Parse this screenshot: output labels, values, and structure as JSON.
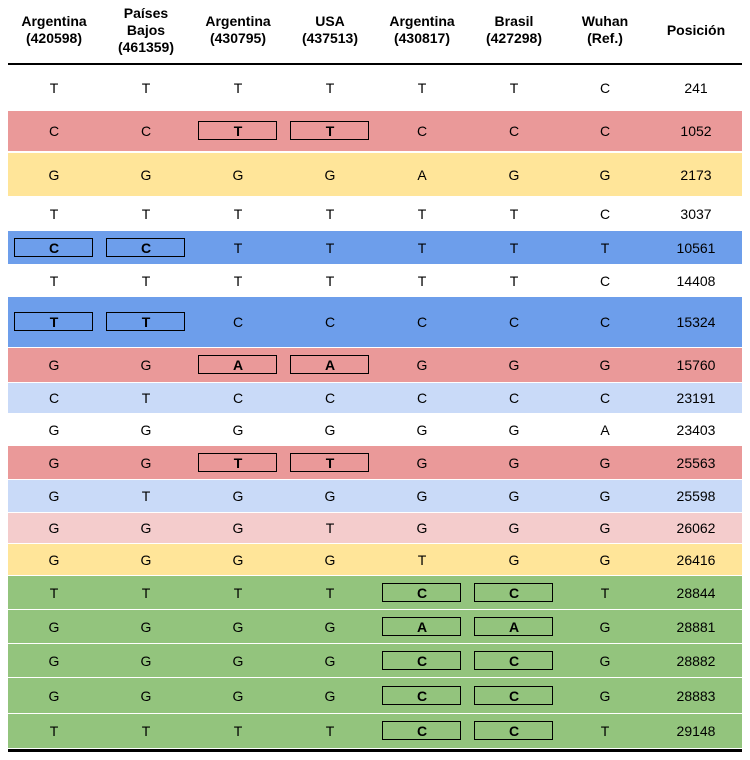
{
  "colors": {
    "red": "#ea9999",
    "yellow": "#ffe599",
    "blue": "#6d9eeb",
    "lightblue": "#c9daf8",
    "pink": "#f4cccc",
    "green": "#93c47d",
    "none": "#ffffff"
  },
  "headers": [
    "Argentina\n(420598)",
    "Países\nBajos\n(461359)",
    "Argentina\n(430795)",
    "USA\n(437513)",
    "Argentina\n(430817)",
    "Brasil\n(427298)",
    "Wuhan\n(Ref.)",
    "Posición"
  ],
  "rows": [
    {
      "bases": [
        "T",
        "T",
        "T",
        "T",
        "T",
        "T",
        "C"
      ],
      "position": "241",
      "color": "none",
      "boxed": []
    },
    {
      "bases": [
        "C",
        "C",
        "T",
        "T",
        "C",
        "C",
        "C"
      ],
      "position": "1052",
      "color": "red",
      "boxed": [
        2,
        3
      ]
    },
    {
      "bases": [
        "G",
        "G",
        "G",
        "G",
        "A",
        "G",
        "G"
      ],
      "position": "2173",
      "color": "yellow",
      "boxed": []
    },
    {
      "bases": [
        "T",
        "T",
        "T",
        "T",
        "T",
        "T",
        "C"
      ],
      "position": "3037",
      "color": "none",
      "boxed": []
    },
    {
      "bases": [
        "C",
        "C",
        "T",
        "T",
        "T",
        "T",
        "T"
      ],
      "position": "10561",
      "color": "blue",
      "boxed": [
        0,
        1
      ]
    },
    {
      "bases": [
        "T",
        "T",
        "T",
        "T",
        "T",
        "T",
        "C"
      ],
      "position": "14408",
      "color": "none",
      "boxed": []
    },
    {
      "bases": [
        "T",
        "T",
        "C",
        "C",
        "C",
        "C",
        "C"
      ],
      "position": "15324",
      "color": "blue",
      "boxed": [
        0,
        1
      ]
    },
    {
      "bases": [
        "G",
        "G",
        "A",
        "A",
        "G",
        "G",
        "G"
      ],
      "position": "15760",
      "color": "red",
      "boxed": [
        2,
        3
      ]
    },
    {
      "bases": [
        "C",
        "T",
        "C",
        "C",
        "C",
        "C",
        "C"
      ],
      "position": "23191",
      "color": "lightblue",
      "boxed": []
    },
    {
      "bases": [
        "G",
        "G",
        "G",
        "G",
        "G",
        "G",
        "A"
      ],
      "position": "23403",
      "color": "none",
      "boxed": []
    },
    {
      "bases": [
        "G",
        "G",
        "T",
        "T",
        "G",
        "G",
        "G"
      ],
      "position": "25563",
      "color": "red",
      "boxed": [
        2,
        3
      ]
    },
    {
      "bases": [
        "G",
        "T",
        "G",
        "G",
        "G",
        "G",
        "G"
      ],
      "position": "25598",
      "color": "lightblue",
      "boxed": []
    },
    {
      "bases": [
        "G",
        "G",
        "G",
        "T",
        "G",
        "G",
        "G"
      ],
      "position": "26062",
      "color": "pink",
      "boxed": []
    },
    {
      "bases": [
        "G",
        "G",
        "G",
        "G",
        "T",
        "G",
        "G"
      ],
      "position": "26416",
      "color": "yellow",
      "boxed": []
    },
    {
      "bases": [
        "T",
        "T",
        "T",
        "T",
        "C",
        "C",
        "T"
      ],
      "position": "28844",
      "color": "green",
      "boxed": [
        4,
        5
      ]
    },
    {
      "bases": [
        "G",
        "G",
        "G",
        "G",
        "A",
        "A",
        "G"
      ],
      "position": "28881",
      "color": "green",
      "boxed": [
        4,
        5
      ]
    },
    {
      "bases": [
        "G",
        "G",
        "G",
        "G",
        "C",
        "C",
        "G"
      ],
      "position": "28882",
      "color": "green",
      "boxed": [
        4,
        5
      ]
    },
    {
      "bases": [
        "G",
        "G",
        "G",
        "G",
        "C",
        "C",
        "G"
      ],
      "position": "28883",
      "color": "green",
      "boxed": [
        4,
        5
      ]
    },
    {
      "bases": [
        "T",
        "T",
        "T",
        "T",
        "C",
        "C",
        "T"
      ],
      "position": "29148",
      "color": "green",
      "boxed": [
        4,
        5
      ]
    }
  ]
}
